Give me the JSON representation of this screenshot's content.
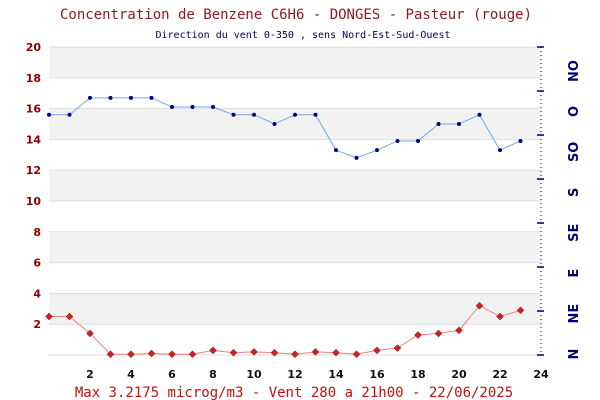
{
  "chart_data": {
    "type": "line",
    "title": "Concentration de Benzene C6H6  -   DONGES - Pasteur (rouge)",
    "subtitle": "Direction du vent 0-350 , sens Nord-Est-Sud-Ouest",
    "footer": "Max 3.2175 microg/m3 - Vent 280  a 21h00 - 22/06/2025",
    "x": [
      0,
      1,
      2,
      3,
      4,
      5,
      6,
      7,
      8,
      9,
      10,
      11,
      12,
      13,
      14,
      15,
      16,
      17,
      18,
      19,
      20,
      21,
      22,
      23
    ],
    "xlim": [
      0,
      24
    ],
    "x_ticks": [
      "2",
      "4",
      "6",
      "8",
      "10",
      "12",
      "14",
      "16",
      "18",
      "20",
      "22",
      "24"
    ],
    "ylim": [
      0,
      20
    ],
    "y_ticks": [
      "2",
      "4",
      "6",
      "8",
      "10",
      "12",
      "14",
      "16",
      "18",
      "20"
    ],
    "direction_labels": [
      "NO",
      "O",
      "SO",
      "S",
      "SE",
      "E",
      "NE",
      "N"
    ],
    "grid": true,
    "series": [
      {
        "axis": "left",
        "color": "#cc2222",
        "line_color": "#f08080",
        "marker": "diamond",
        "values": [
          2.5,
          2.5,
          1.4,
          0.05,
          0.05,
          0.1,
          0.05,
          0.05,
          0.3,
          0.15,
          0.2,
          0.15,
          0.05,
          0.2,
          0.15,
          0.05,
          0.3,
          0.45,
          1.3,
          1.4,
          1.6,
          3.2,
          2.5,
          2.9
        ]
      },
      {
        "axis": "right",
        "color": "#00008b",
        "line_color": "#6fa8e8",
        "marker": "dot",
        "values": [
          15.6,
          15.6,
          16.7,
          16.7,
          16.7,
          16.7,
          16.1,
          16.1,
          16.1,
          15.6,
          15.6,
          15.0,
          15.6,
          15.6,
          13.3,
          12.8,
          13.3,
          13.9,
          13.9,
          15.0,
          15.0,
          15.6,
          13.3,
          13.9
        ]
      }
    ]
  }
}
